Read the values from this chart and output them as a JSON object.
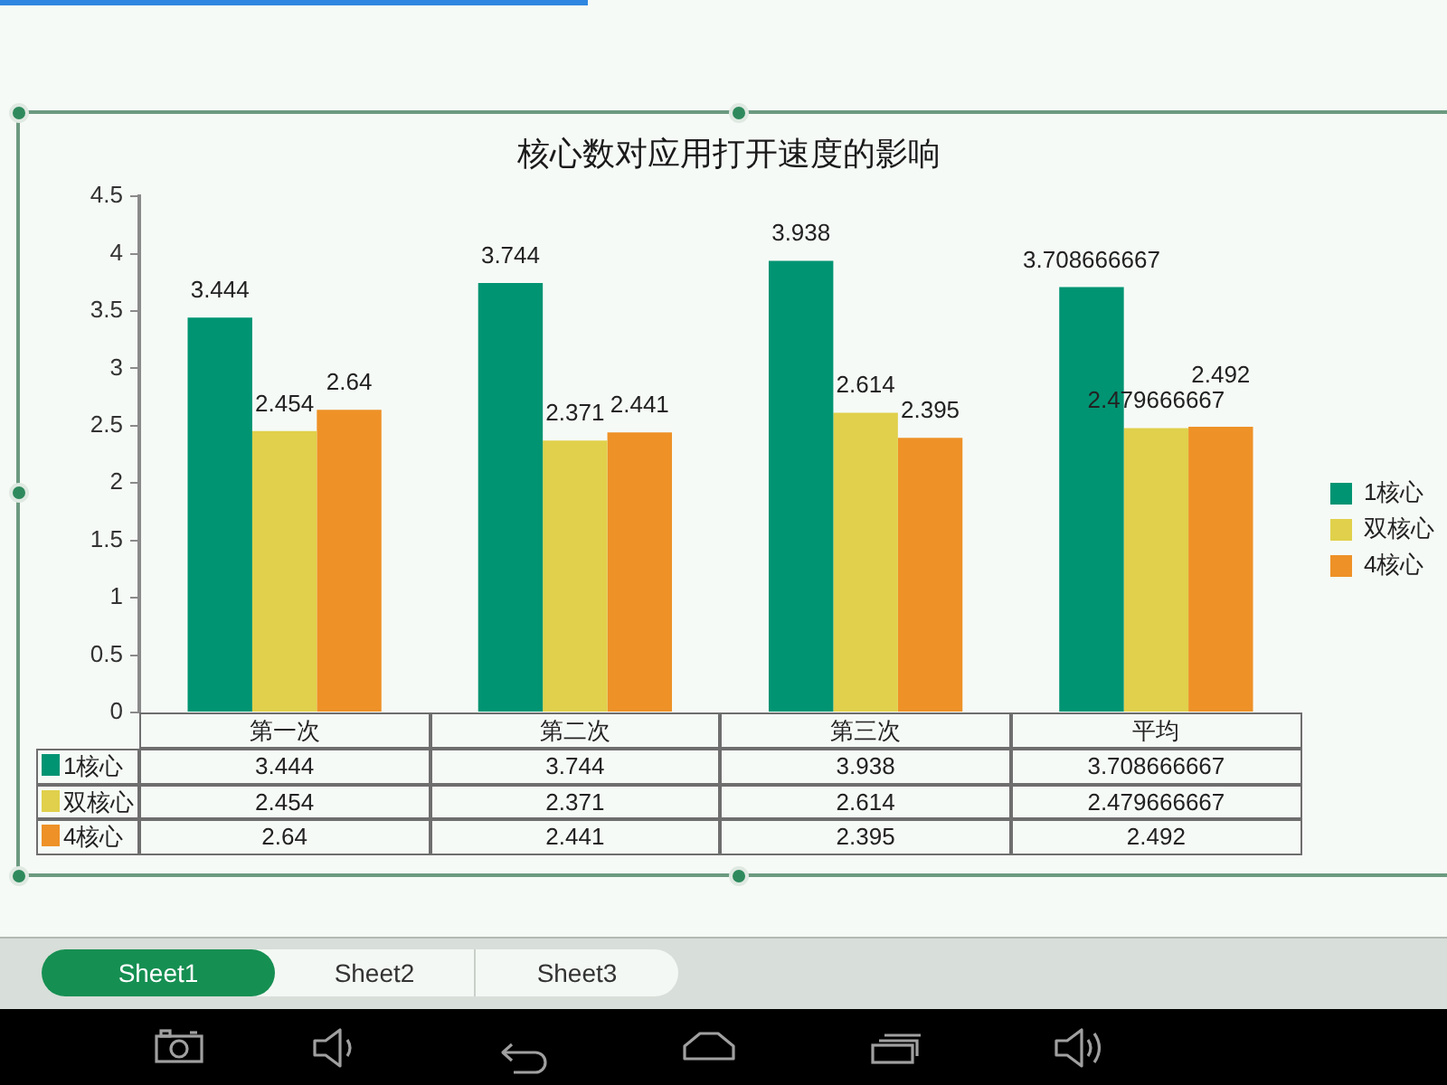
{
  "chart_data": {
    "type": "bar",
    "title": "核心数对应用打开速度的影响",
    "categories": [
      "第一次",
      "第二次",
      "第三次",
      "平均"
    ],
    "series": [
      {
        "name": "1核心",
        "color": "#009473",
        "values": [
          3.444,
          3.744,
          3.938,
          3.708666667
        ]
      },
      {
        "name": "双核心",
        "color": "#e0d04b",
        "values": [
          2.454,
          2.371,
          2.614,
          2.479666667
        ]
      },
      {
        "name": "4核心",
        "color": "#ee9127",
        "values": [
          2.64,
          2.441,
          2.395,
          2.492
        ]
      }
    ],
    "ylim": [
      0,
      4.5
    ],
    "yticks": [
      0,
      0.5,
      1,
      1.5,
      2,
      2.5,
      3,
      3.5,
      4,
      4.5
    ],
    "grid": false,
    "legend": "right",
    "data_labels": true,
    "annotations": [
      "3.444",
      "3.744",
      "3.938",
      "3.708666667",
      "2.454",
      "2.371",
      "2.614",
      "2.479666667",
      "2.64",
      "2.441",
      "2.395",
      "2.492",
      "Sheet1",
      "Sheet2",
      "Sheet3"
    ]
  }
}
